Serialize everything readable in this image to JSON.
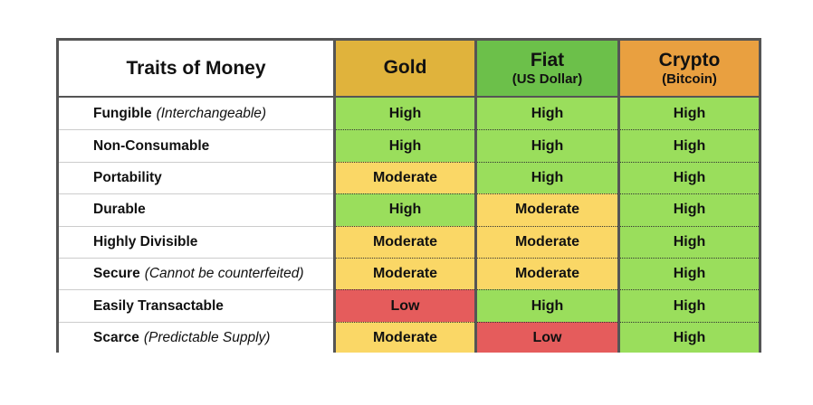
{
  "header": {
    "title": "Traits of Money",
    "columns": [
      {
        "name": "Gold",
        "color": "#e0b33c"
      },
      {
        "name": "Fiat",
        "sub": "(US Dollar)",
        "color": "#6cc04a"
      },
      {
        "name": "Crypto",
        "sub": "(Bitcoin)",
        "color": "#e9a040"
      }
    ]
  },
  "table": {
    "rows": [
      {
        "trait": "Fungible",
        "note": "(Interchangeable)",
        "cells": [
          {
            "rating": "High",
            "color": "#9ade5c"
          },
          {
            "rating": "High",
            "color": "#9ade5c"
          },
          {
            "rating": "High",
            "color": "#9ade5c"
          }
        ]
      },
      {
        "trait": "Non-Consumable",
        "cells": [
          {
            "rating": "High",
            "color": "#9ade5c"
          },
          {
            "rating": "High",
            "color": "#9ade5c"
          },
          {
            "rating": "High",
            "color": "#9ade5c"
          }
        ]
      },
      {
        "trait": "Portability",
        "cells": [
          {
            "rating": "Moderate",
            "color": "#fad766"
          },
          {
            "rating": "High",
            "color": "#9ade5c"
          },
          {
            "rating": "High",
            "color": "#9ade5c"
          }
        ]
      },
      {
        "trait": "Durable",
        "cells": [
          {
            "rating": "High",
            "color": "#9ade5c"
          },
          {
            "rating": "Moderate",
            "color": "#fad766"
          },
          {
            "rating": "High",
            "color": "#9ade5c"
          }
        ]
      },
      {
        "trait": "Highly Divisible",
        "cells": [
          {
            "rating": "Moderate",
            "color": "#fad766"
          },
          {
            "rating": "Moderate",
            "color": "#fad766"
          },
          {
            "rating": "High",
            "color": "#9ade5c"
          }
        ]
      },
      {
        "trait": "Secure",
        "note": "(Cannot be counterfeited)",
        "cells": [
          {
            "rating": "Moderate",
            "color": "#fad766"
          },
          {
            "rating": "Moderate",
            "color": "#fad766"
          },
          {
            "rating": "High",
            "color": "#9ade5c"
          }
        ]
      },
      {
        "trait": "Easily Transactable",
        "cells": [
          {
            "rating": "Low",
            "color": "#e55c5c"
          },
          {
            "rating": "High",
            "color": "#9ade5c"
          },
          {
            "rating": "High",
            "color": "#9ade5c"
          }
        ]
      },
      {
        "trait": "Scarce",
        "note": "(Predictable Supply)",
        "cells": [
          {
            "rating": "Moderate",
            "color": "#fad766"
          },
          {
            "rating": "Low",
            "color": "#e55c5c"
          },
          {
            "rating": "High",
            "color": "#9ade5c"
          }
        ]
      }
    ]
  }
}
